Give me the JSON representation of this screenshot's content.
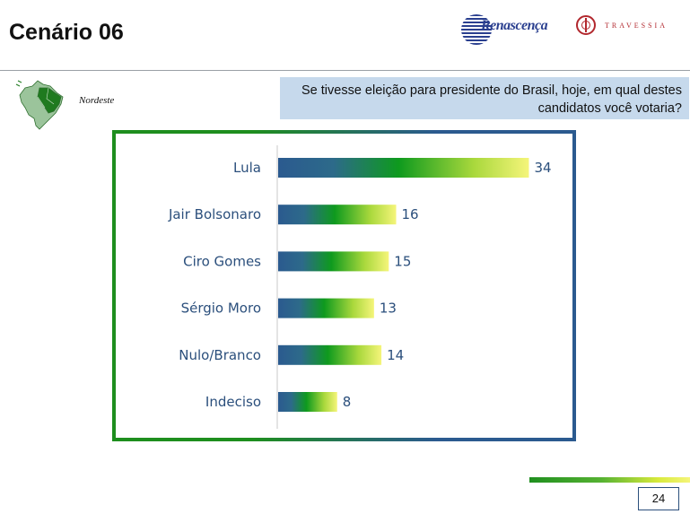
{
  "header": {
    "title": "Cenário 06",
    "logo_renascenca": "Renascença",
    "logo_travessia": "TRAVESSIA"
  },
  "region_label": "Nordeste",
  "question": "Se tivesse eleição para presidente do Brasil, hoje, em qual destes candidatos você votaria?",
  "page_number": "24",
  "icons": {
    "map": "brazil-map-icon"
  },
  "colors": {
    "bar_start": "#2b5a8f",
    "bar_mid": "#0e9a1e",
    "bar_end": "#f5f57a",
    "label": "#2b4f7c",
    "question_bg": "#c6d9ec"
  },
  "chart_data": {
    "type": "bar",
    "orientation": "horizontal",
    "categories": [
      "Lula",
      "Jair Bolsonaro",
      "Ciro Gomes",
      "Sérgio Moro",
      "Nulo/Branco",
      "Indeciso"
    ],
    "values": [
      34,
      16,
      15,
      13,
      14,
      8
    ],
    "title": "",
    "xlabel": "",
    "ylabel": "",
    "grid": false
  }
}
